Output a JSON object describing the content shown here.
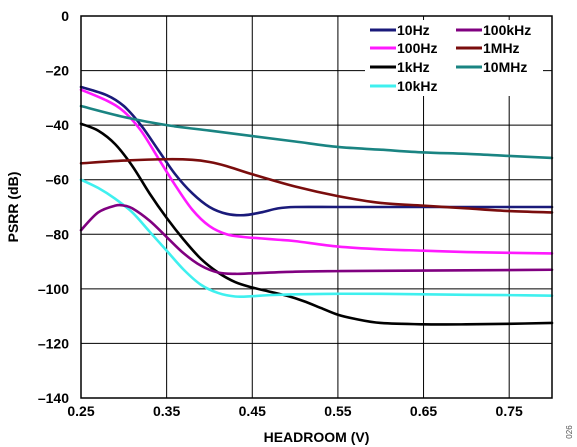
{
  "chart_data": {
    "type": "line",
    "title": "",
    "xlabel": "HEADROOM (V)",
    "ylabel": "PSRR (dB)",
    "xlim": [
      0.25,
      0.8
    ],
    "ylim": [
      -140,
      0
    ],
    "xticks": [
      0.25,
      0.35,
      0.45,
      0.55,
      0.65,
      0.75
    ],
    "xtick_labels": [
      "0.25",
      "0.35",
      "0.45",
      "0.55",
      "0.65",
      "0.75"
    ],
    "yticks": [
      0,
      -20,
      -40,
      -60,
      -80,
      -100,
      -120,
      -140
    ],
    "ytick_labels": [
      "0",
      "–20",
      "–40",
      "–60",
      "–80",
      "–100",
      "–120",
      "–140"
    ],
    "grid": true,
    "legend_position": "top-right",
    "side_note": "026",
    "series": [
      {
        "name": "10Hz",
        "color": "#1a1a7a",
        "x": [
          0.25,
          0.28,
          0.3,
          0.32,
          0.34,
          0.36,
          0.38,
          0.4,
          0.42,
          0.44,
          0.46,
          0.48,
          0.5,
          0.55,
          0.6,
          0.65,
          0.7,
          0.75,
          0.8
        ],
        "y": [
          -26,
          -29,
          -33,
          -40,
          -49,
          -58,
          -65,
          -70,
          -72.5,
          -73,
          -72,
          -70.5,
          -70,
          -70,
          -70,
          -70,
          -70,
          -70,
          -70
        ]
      },
      {
        "name": "100Hz",
        "color": "#ff19ff",
        "x": [
          0.25,
          0.28,
          0.3,
          0.32,
          0.34,
          0.36,
          0.38,
          0.4,
          0.42,
          0.44,
          0.46,
          0.48,
          0.5,
          0.55,
          0.6,
          0.65,
          0.7,
          0.75,
          0.8
        ],
        "y": [
          -27,
          -31,
          -35,
          -42,
          -52,
          -62,
          -71,
          -77,
          -80,
          -81,
          -81.5,
          -82,
          -82.5,
          -84.5,
          -85.5,
          -86,
          -86.5,
          -86.8,
          -87
        ]
      },
      {
        "name": "1kHz",
        "color": "#000000",
        "x": [
          0.25,
          0.27,
          0.29,
          0.31,
          0.33,
          0.35,
          0.37,
          0.39,
          0.41,
          0.43,
          0.45,
          0.47,
          0.49,
          0.51,
          0.53,
          0.55,
          0.57,
          0.6,
          0.65,
          0.7,
          0.75,
          0.8
        ],
        "y": [
          -39.5,
          -42,
          -47,
          -55,
          -65,
          -74,
          -82,
          -89,
          -94,
          -97.5,
          -99.5,
          -101,
          -102.5,
          -104.5,
          -107,
          -109.5,
          -111,
          -112.5,
          -113,
          -113,
          -112.8,
          -112.5
        ]
      },
      {
        "name": "10kHz",
        "color": "#3ff0ef",
        "x": [
          0.25,
          0.27,
          0.29,
          0.31,
          0.33,
          0.35,
          0.37,
          0.39,
          0.41,
          0.43,
          0.45,
          0.47,
          0.5,
          0.55,
          0.6,
          0.65,
          0.7,
          0.75,
          0.8
        ],
        "y": [
          -60,
          -63,
          -67,
          -72,
          -79,
          -86,
          -93,
          -98.5,
          -101.5,
          -102.8,
          -102.7,
          -102.3,
          -102,
          -101.8,
          -101.8,
          -102,
          -102.2,
          -102.3,
          -102.5
        ]
      },
      {
        "name": "100kHz",
        "color": "#800080",
        "x": [
          0.25,
          0.27,
          0.29,
          0.3,
          0.31,
          0.33,
          0.35,
          0.37,
          0.39,
          0.41,
          0.43,
          0.45,
          0.5,
          0.55,
          0.6,
          0.65,
          0.7,
          0.75,
          0.8
        ],
        "y": [
          -78.5,
          -72,
          -69.5,
          -69.5,
          -70.5,
          -75,
          -81,
          -87,
          -91.5,
          -94,
          -94.5,
          -94.3,
          -93.7,
          -93.5,
          -93.4,
          -93.3,
          -93.2,
          -93.1,
          -93
        ]
      },
      {
        "name": "1MHz",
        "color": "#7a0d0d",
        "x": [
          0.25,
          0.3,
          0.35,
          0.38,
          0.4,
          0.42,
          0.45,
          0.5,
          0.55,
          0.6,
          0.65,
          0.7,
          0.75,
          0.8
        ],
        "y": [
          -54,
          -53,
          -52.5,
          -52.7,
          -53.5,
          -55,
          -58,
          -62.5,
          -66,
          -68.5,
          -69.5,
          -70.5,
          -71.5,
          -72
        ]
      },
      {
        "name": "10MHz",
        "color": "#1a8482",
        "x": [
          0.25,
          0.3,
          0.35,
          0.4,
          0.45,
          0.5,
          0.55,
          0.6,
          0.65,
          0.7,
          0.75,
          0.8
        ],
        "y": [
          -33,
          -37,
          -40,
          -42,
          -44,
          -46,
          -48,
          -49,
          -50,
          -50.5,
          -51.3,
          -52
        ]
      }
    ]
  }
}
